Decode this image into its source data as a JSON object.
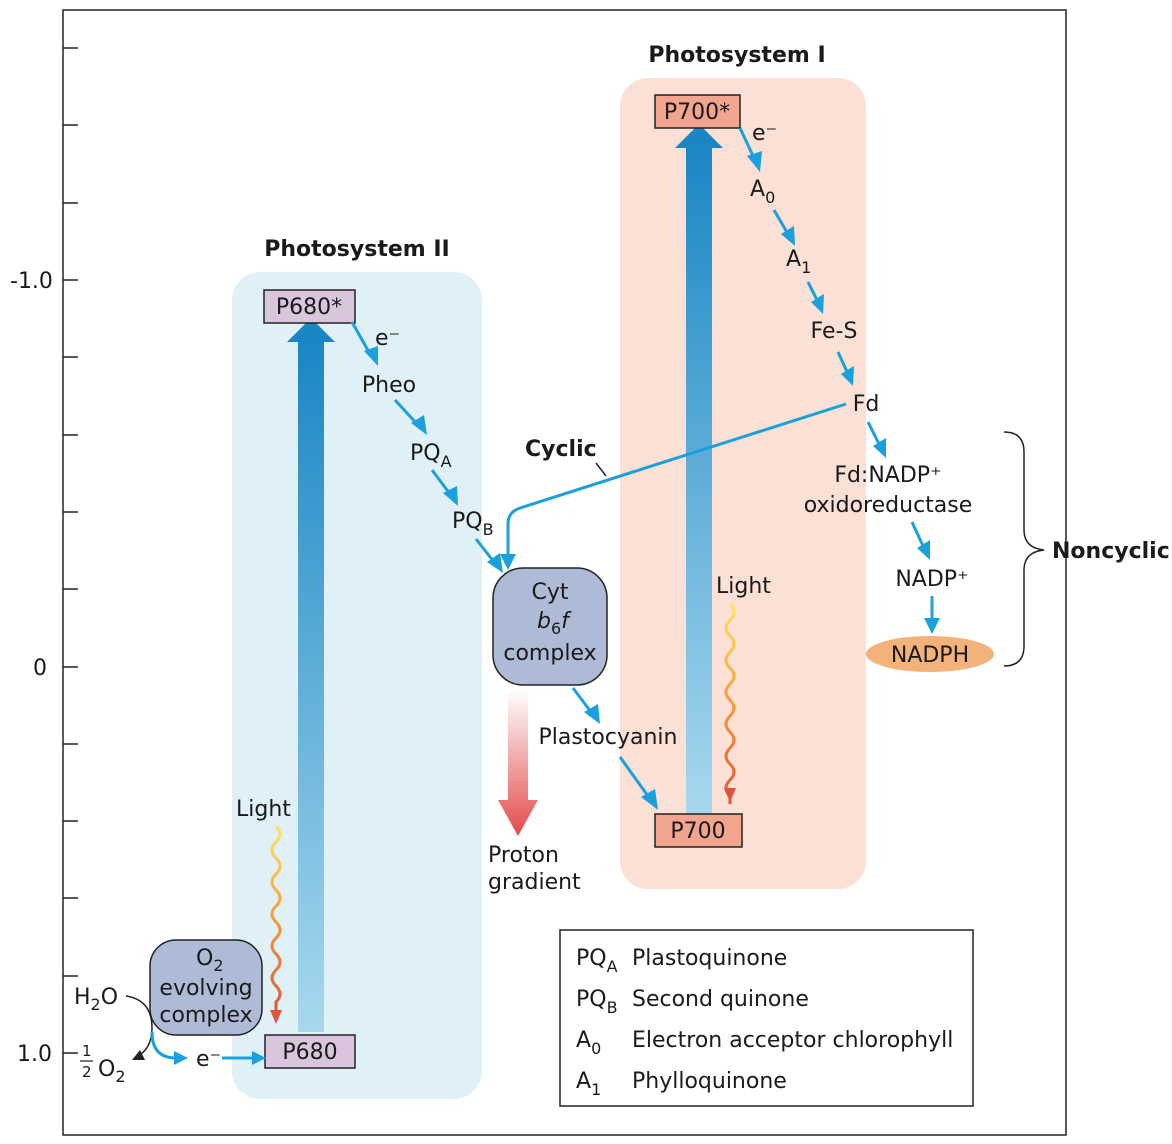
{
  "axis": {
    "ticks": [
      "-1.0",
      "0",
      "1.0"
    ]
  },
  "photosystem_ii": {
    "title": "Photosystem II",
    "p680_star": "P680*",
    "p680": "P680",
    "e_label": "e⁻",
    "pheo": "Pheo",
    "pqa_main": "PQ",
    "pqa_sub": "A",
    "pqb_main": "PQ",
    "pqb_sub": "B",
    "light": "Light",
    "o2_complex": [
      "O",
      "2",
      "evolving",
      "complex"
    ],
    "h2o": [
      "H",
      "2",
      "O"
    ],
    "half_o2": [
      "1",
      "2",
      "O",
      "2"
    ],
    "e_bottom": "e⁻"
  },
  "photosystem_i": {
    "title": "Photosystem I",
    "p700_star": "P700*",
    "p700": "P700",
    "e_label": "e⁻",
    "a0_main": "A",
    "a0_sub": "0",
    "a1_main": "A",
    "a1_sub": "1",
    "fes": "Fe-S",
    "fd": "Fd",
    "fnr_line1": "Fd:NADP⁺",
    "fnr_line2": "oxidoreductase",
    "nadp": "NADP⁺",
    "nadph": "NADPH",
    "light": "Light"
  },
  "cytb6f": [
    "Cyt",
    "b",
    "6",
    "f",
    "complex"
  ],
  "plastocyanin": "Plastocyanin",
  "proton_gradient": [
    "Proton",
    "gradient"
  ],
  "cyclic": "Cyclic",
  "noncyclic": "Noncyclic",
  "legend": [
    {
      "abbr_main": "PQ",
      "abbr_sub": "A",
      "desc": "Plastoquinone"
    },
    {
      "abbr_main": "PQ",
      "abbr_sub": "B",
      "desc": "Second quinone"
    },
    {
      "abbr_main": "A",
      "abbr_sub": "0",
      "desc": "Electron acceptor chlorophyll"
    },
    {
      "abbr_main": "A",
      "abbr_sub": "1",
      "desc": "Phylloquinone"
    }
  ],
  "colors": {
    "ps2_bg": "#dff0f7",
    "ps1_bg": "#fbe0d6",
    "arrow_blue": "#1aa0dc",
    "p680_box": "#d9c6dc",
    "p700_box": "#f2a58e",
    "cyt_box": "#aebbd6",
    "nadph_ellipse": "#f2b27a"
  }
}
